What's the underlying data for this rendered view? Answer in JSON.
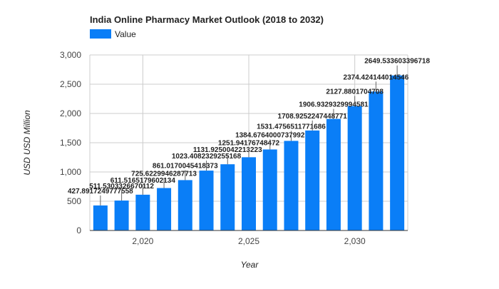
{
  "chart_data": {
    "type": "bar",
    "title": "India Online Pharmacy Market Outlook (2018 to 2032)",
    "xlabel": "Year",
    "ylabel": "USD USD Million",
    "legend_position": "top-left",
    "grid": true,
    "x_tick_labels": [
      "2,020",
      "2,025",
      "2,030"
    ],
    "y_tick_labels": [
      "0",
      "500",
      "1,000",
      "1,500",
      "2,000",
      "2,500",
      "3,000"
    ],
    "ylim": [
      0,
      3000
    ],
    "bar_color": "#0a7ef7",
    "series": [
      {
        "name": "Value",
        "x": [
          2018,
          2019,
          2020,
          2021,
          2022,
          2023,
          2024,
          2025,
          2026,
          2027,
          2028,
          2029,
          2030,
          2031,
          2032
        ],
        "values": [
          427.89,
          511.53,
          611.52,
          725.62,
          861.02,
          1023.41,
          1131.93,
          1251.94,
          1384.68,
          1531.48,
          1708.93,
          1906.93,
          2127.88,
          2374.42,
          2649.53
        ],
        "labels": [
          "427.8917249777558",
          "511.5303326670112",
          "611.5165179602134",
          "725.6229946287713",
          "861.0170045418373",
          "1023.4082329255168",
          "1131.9250042213223",
          "1251.94176748472",
          "1384.6764000737992",
          "1531.4756511771686",
          "1708.9252247448771",
          "1906.9329329994581",
          "2127.8801704708",
          "2374.424144014546",
          "2649.533603396718"
        ]
      }
    ]
  }
}
